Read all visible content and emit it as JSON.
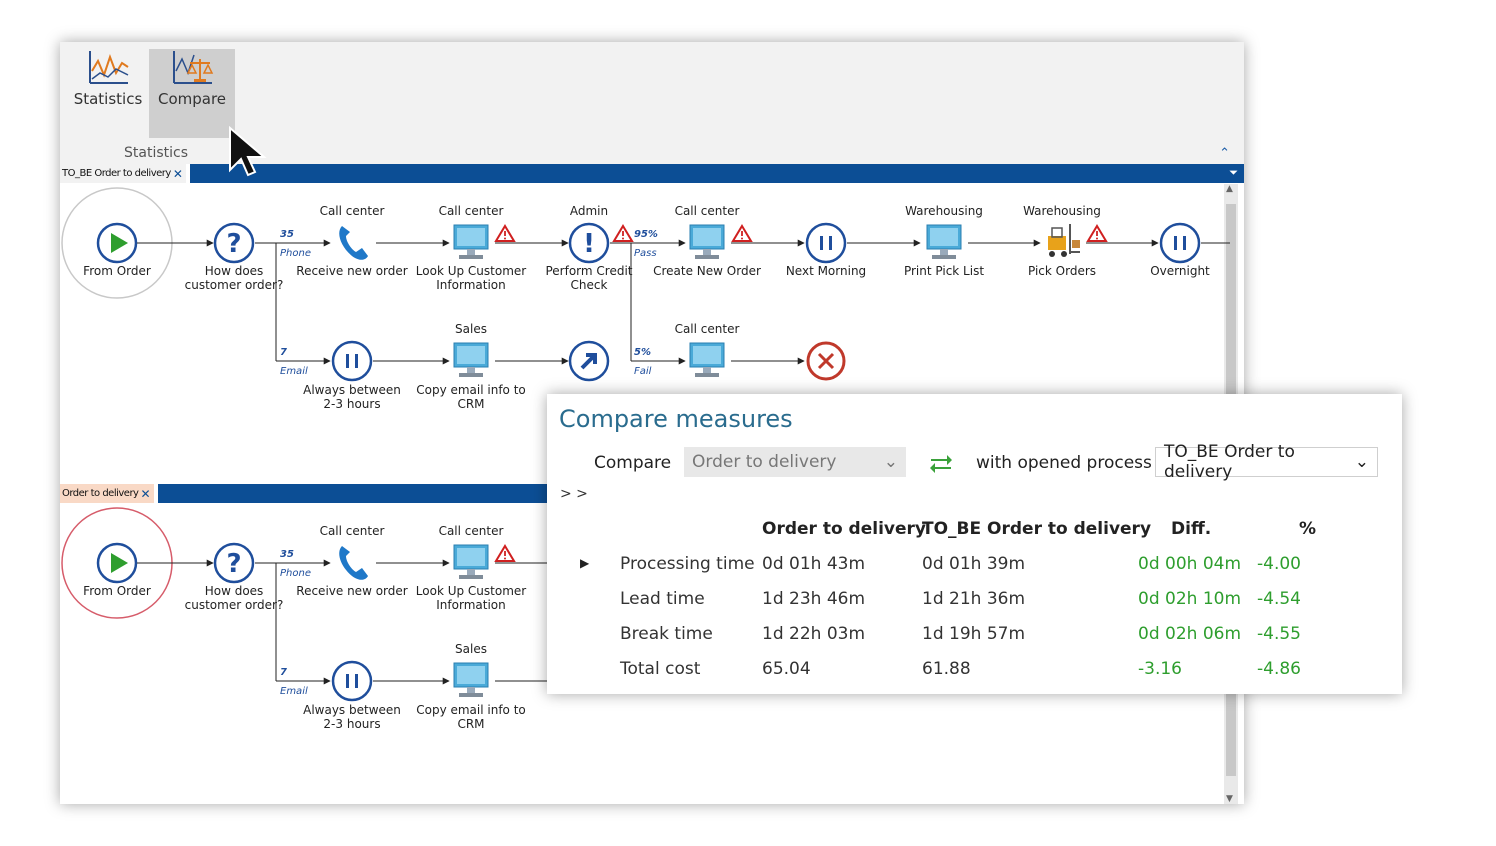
{
  "ribbon": {
    "buttons": [
      {
        "label": "Statistics",
        "icon": "statistics-chart-icon"
      },
      {
        "label": "Compare",
        "icon": "compare-scale-icon"
      }
    ],
    "group_label": "Statistics",
    "collapse": "⌃"
  },
  "process_top": {
    "tab_label": "TO_BE Order to delivery",
    "nodes": {
      "start": "From Order",
      "decision": [
        "How does",
        "customer order?"
      ],
      "receive": "Receive new order",
      "lookup": [
        "Look Up Customer",
        "Information"
      ],
      "credit": [
        "Perform Credit",
        "Check"
      ],
      "create": "Create New Order",
      "next_morning": "Next Morning",
      "print": "Print Pick List",
      "pick": "Pick Orders",
      "overnight": "Overnight",
      "always": [
        "Always between",
        "2-3 hours"
      ],
      "copy": [
        "Copy email info to",
        "CRM"
      ]
    },
    "roles": {
      "receive": "Call center",
      "lookup": "Call center",
      "credit": "Admin",
      "create": "Call center",
      "print": "Warehousing",
      "pick": "Warehousing",
      "copy": "Sales",
      "fail_task": "Call center"
    },
    "branches": {
      "phone_count": "35",
      "phone": "Phone",
      "email_count": "7",
      "email": "Email",
      "pass_pct": "95%",
      "pass": "Pass",
      "fail_pct": "5%",
      "fail": "Fail"
    }
  },
  "process_bottom": {
    "tab_label": "Order to delivery",
    "nodes": {
      "start": "From Order",
      "decision": [
        "How does",
        "customer order?"
      ],
      "receive": "Receive new order",
      "lookup": [
        "Look Up Customer",
        "Information"
      ],
      "always": [
        "Always between",
        "2-3 hours"
      ],
      "copy": [
        "Copy email info to",
        "CRM"
      ]
    },
    "roles": {
      "receive": "Call center",
      "lookup": "Call center",
      "copy": "Sales"
    },
    "branches": {
      "phone_count": "35",
      "phone": "Phone",
      "email_count": "7",
      "email": "Email"
    }
  },
  "compare_panel": {
    "title": "Compare measures",
    "compare_label": "Compare",
    "compare_value": "Order to delivery",
    "with_label": "with opened process",
    "with_value": "TO_BE Order to delivery",
    "expander": "> >",
    "headers": [
      "Order to delivery",
      "TO_BE Order to delivery",
      "Diff.",
      "%"
    ],
    "rows": [
      {
        "measure": "Processing time",
        "a": "0d 01h 43m",
        "b": "0d 01h 39m",
        "diff": "0d 00h 04m",
        "pct": "-4.00"
      },
      {
        "measure": "Lead time",
        "a": "1d 23h 46m",
        "b": "1d 21h 36m",
        "diff": "0d 02h 10m",
        "pct": "-4.54"
      },
      {
        "measure": "Break time",
        "a": "1d 22h 03m",
        "b": "1d 19h 57m",
        "diff": "0d 02h 06m",
        "pct": "-4.55"
      },
      {
        "measure": "Total cost",
        "a": "65.04",
        "b": "61.88",
        "diff": "-3.16",
        "pct": "-4.86"
      }
    ],
    "colors": {
      "title": "#2a6c8e",
      "positive": "#2e9e2e",
      "swap": "#3aa13a"
    }
  },
  "colors": {
    "tab_bar": "#0c4e95",
    "start": "#2e9e2e",
    "node": "#1f4e9c",
    "warn": "#d02020",
    "end": "#c0392b"
  }
}
